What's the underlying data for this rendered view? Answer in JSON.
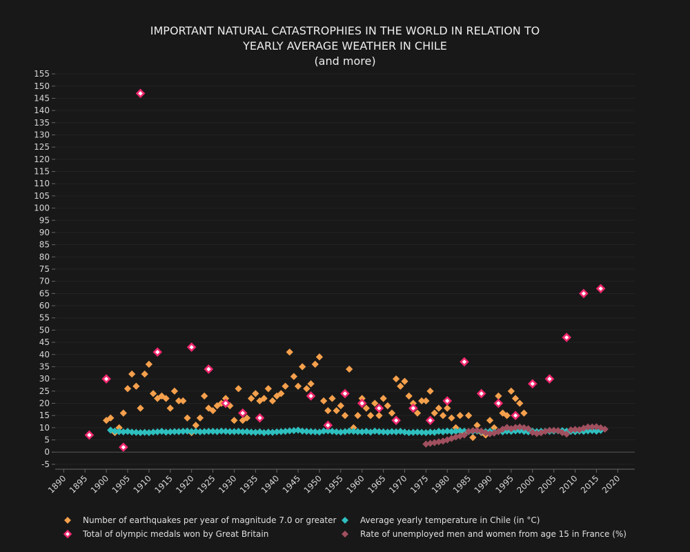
{
  "chart_data": {
    "type": "scatter",
    "title": [
      "IMPORTANT NATURAL CATASTROPHIES IN THE WORLD IN RELATION TO",
      "YEARLY AVERAGE WEATHER IN CHILE",
      "(and more)"
    ],
    "xlabel": "",
    "ylabel": "",
    "xlim": [
      1888,
      2024
    ],
    "ylim": [
      -7,
      157
    ],
    "xticks": [
      1890,
      1895,
      1900,
      1905,
      1910,
      1915,
      1920,
      1925,
      1930,
      1935,
      1940,
      1945,
      1950,
      1955,
      1960,
      1965,
      1970,
      1975,
      1980,
      1985,
      1990,
      1995,
      2000,
      2005,
      2010,
      2015,
      2020
    ],
    "yticks": [
      -5,
      0,
      5,
      10,
      15,
      20,
      25,
      30,
      35,
      40,
      45,
      50,
      55,
      60,
      65,
      70,
      75,
      80,
      85,
      90,
      95,
      100,
      105,
      110,
      115,
      120,
      125,
      130,
      135,
      140,
      145,
      150,
      155
    ],
    "legend_position": "bottom",
    "series": [
      {
        "name": "Number of earthquakes per year of magnitude 7.0 or greater",
        "color": "#f5a04c",
        "x": [
          1900,
          1901,
          1902,
          1903,
          1904,
          1905,
          1906,
          1907,
          1908,
          1909,
          1910,
          1911,
          1912,
          1913,
          1914,
          1915,
          1916,
          1917,
          1918,
          1919,
          1920,
          1921,
          1922,
          1923,
          1924,
          1925,
          1926,
          1927,
          1928,
          1929,
          1930,
          1931,
          1932,
          1933,
          1934,
          1935,
          1936,
          1937,
          1938,
          1939,
          1940,
          1941,
          1942,
          1943,
          1944,
          1945,
          1946,
          1947,
          1948,
          1949,
          1950,
          1951,
          1952,
          1953,
          1954,
          1955,
          1956,
          1957,
          1958,
          1959,
          1960,
          1961,
          1962,
          1963,
          1964,
          1965,
          1966,
          1967,
          1968,
          1969,
          1970,
          1971,
          1972,
          1973,
          1974,
          1975,
          1976,
          1977,
          1978,
          1979,
          1980,
          1981,
          1982,
          1983,
          1984,
          1985,
          1986,
          1987,
          1988,
          1989,
          1990,
          1991,
          1992,
          1993,
          1994,
          1995,
          1996,
          1997,
          1998
        ],
        "y": [
          13,
          14,
          8,
          10,
          16,
          26,
          32,
          27,
          18,
          32,
          36,
          24,
          22,
          23,
          22,
          18,
          25,
          21,
          21,
          14,
          8,
          11,
          14,
          23,
          18,
          17,
          19,
          20,
          22,
          19,
          13,
          26,
          13,
          14,
          22,
          24,
          21,
          22,
          26,
          21,
          23,
          24,
          27,
          41,
          31,
          27,
          35,
          26,
          28,
          36,
          39,
          21,
          17,
          22,
          17,
          19,
          15,
          34,
          10,
          15,
          22,
          18,
          15,
          20,
          15,
          22,
          19,
          16,
          30,
          27,
          29,
          23,
          20,
          16,
          21,
          21,
          25,
          16,
          18,
          15,
          18,
          14,
          10,
          15,
          8,
          15,
          6,
          11,
          8,
          7,
          13,
          10,
          23,
          16,
          15,
          25,
          22,
          20,
          16
        ]
      },
      {
        "name": "Total of olympic medals won by Great Britain",
        "color": "#f0286e",
        "x": [
          1896,
          1900,
          1904,
          1908,
          1912,
          1920,
          1924,
          1928,
          1932,
          1936,
          1948,
          1952,
          1956,
          1960,
          1964,
          1968,
          1972,
          1976,
          1980,
          1984,
          1988,
          1992,
          1996,
          2000,
          2004,
          2008,
          2012,
          2016
        ],
        "y": [
          7,
          30,
          2,
          147,
          41,
          43,
          34,
          20,
          16,
          14,
          23,
          11,
          24,
          20,
          18,
          13,
          18,
          13,
          21,
          37,
          24,
          20,
          15,
          28,
          30,
          47,
          65,
          67
        ]
      },
      {
        "name": "Average yearly temperature in Chile (in °C)",
        "color": "#2fbfbf",
        "x": [
          1901,
          1902,
          1903,
          1904,
          1905,
          1906,
          1907,
          1908,
          1909,
          1910,
          1911,
          1912,
          1913,
          1914,
          1915,
          1916,
          1917,
          1918,
          1919,
          1920,
          1921,
          1922,
          1923,
          1924,
          1925,
          1926,
          1927,
          1928,
          1929,
          1930,
          1931,
          1932,
          1933,
          1934,
          1935,
          1936,
          1937,
          1938,
          1939,
          1940,
          1941,
          1942,
          1943,
          1944,
          1945,
          1946,
          1947,
          1948,
          1949,
          1950,
          1951,
          1952,
          1953,
          1954,
          1955,
          1956,
          1957,
          1958,
          1959,
          1960,
          1961,
          1962,
          1963,
          1964,
          1965,
          1966,
          1967,
          1968,
          1969,
          1970,
          1971,
          1972,
          1973,
          1974,
          1975,
          1976,
          1977,
          1978,
          1979,
          1980,
          1981,
          1982,
          1983,
          1984,
          1985,
          1986,
          1987,
          1988,
          1989,
          1990,
          1991,
          1992,
          1993,
          1994,
          1995,
          1996,
          1997,
          1998,
          1999,
          2000,
          2001,
          2002,
          2003,
          2004,
          2005,
          2006,
          2007,
          2008,
          2009,
          2010,
          2011,
          2012,
          2013,
          2014,
          2015,
          2016
        ],
        "y": [
          9.0,
          8.6,
          8.4,
          8.3,
          8.5,
          8.2,
          8.1,
          8.0,
          8.1,
          8.0,
          8.2,
          8.3,
          8.5,
          8.2,
          8.3,
          8.4,
          8.4,
          8.5,
          8.6,
          8.4,
          8.5,
          8.3,
          8.4,
          8.5,
          8.5,
          8.4,
          8.6,
          8.5,
          8.4,
          8.4,
          8.5,
          8.3,
          8.4,
          8.2,
          8.1,
          8.3,
          8.0,
          8.2,
          8.1,
          8.3,
          8.4,
          8.5,
          8.7,
          8.8,
          9.0,
          8.6,
          8.5,
          8.4,
          8.3,
          8.2,
          8.6,
          8.7,
          8.5,
          8.3,
          8.2,
          8.4,
          8.6,
          8.5,
          8.4,
          8.3,
          8.5,
          8.2,
          8.6,
          8.4,
          8.3,
          8.2,
          8.4,
          8.3,
          8.5,
          8.2,
          8.0,
          8.1,
          8.2,
          8.1,
          8.0,
          8.2,
          8.1,
          8.5,
          8.3,
          8.6,
          8.4,
          8.5,
          8.7,
          8.6,
          8.4,
          8.5,
          8.6,
          8.3,
          8.4,
          8.5,
          8.2,
          8.4,
          8.3,
          8.6,
          8.5,
          8.7,
          8.8,
          8.5,
          8.3,
          8.6,
          8.4,
          8.5,
          8.6,
          8.5,
          8.6,
          8.7,
          8.8,
          8.6,
          8.5,
          8.4,
          8.6,
          8.5,
          8.7,
          8.8,
          8.6,
          8.9
        ]
      },
      {
        "name": "Rate of unemployed men and women from age 15 in France (%)",
        "color": "#a0505f",
        "x": [
          1975,
          1976,
          1977,
          1978,
          1979,
          1980,
          1981,
          1982,
          1983,
          1984,
          1985,
          1986,
          1987,
          1988,
          1989,
          1990,
          1991,
          1992,
          1993,
          1994,
          1995,
          1996,
          1997,
          1998,
          1999,
          2000,
          2001,
          2002,
          2003,
          2004,
          2005,
          2006,
          2007,
          2008,
          2009,
          2010,
          2011,
          2012,
          2013,
          2014,
          2015,
          2016,
          2017
        ],
        "y": [
          3.3,
          3.6,
          3.9,
          4.2,
          4.5,
          5.0,
          5.6,
          6.2,
          6.6,
          7.0,
          8.5,
          8.8,
          8.9,
          8.6,
          7.9,
          7.5,
          7.8,
          8.4,
          9.4,
          10.1,
          9.6,
          10.1,
          10.3,
          10.0,
          9.6,
          8.1,
          7.6,
          7.9,
          8.5,
          8.9,
          8.9,
          8.8,
          8.0,
          7.4,
          9.1,
          9.3,
          9.2,
          9.8,
          10.3,
          10.3,
          10.4,
          10.0,
          9.4
        ]
      }
    ]
  }
}
